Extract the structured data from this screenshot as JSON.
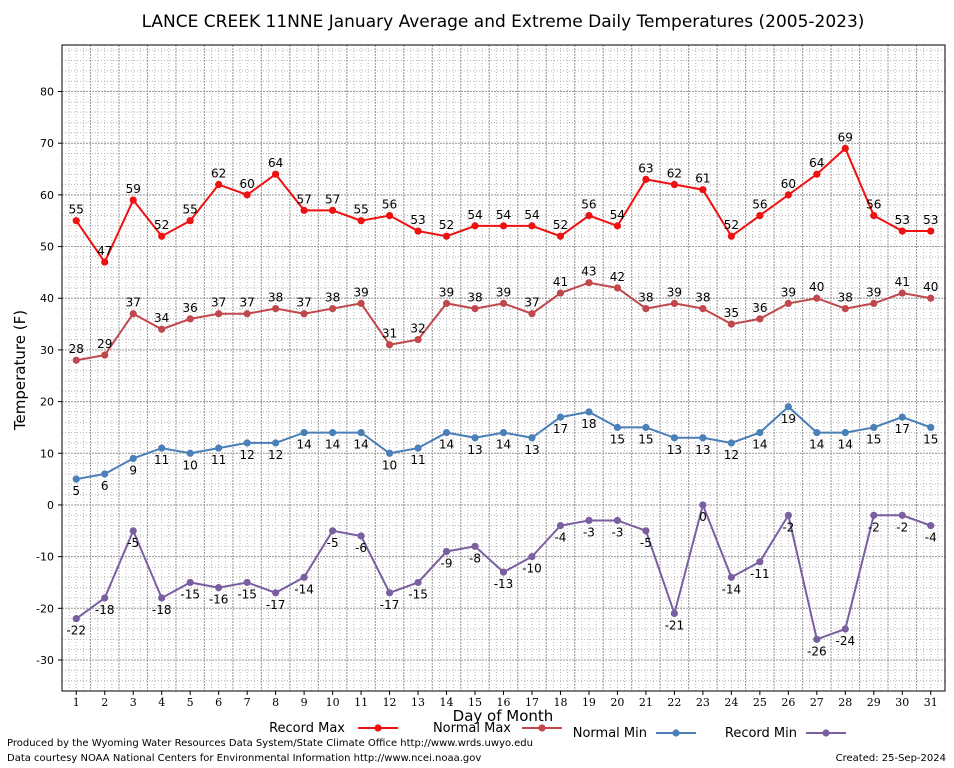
{
  "chart_data": {
    "type": "line",
    "title": "LANCE CREEK 11NNE January Average and Extreme Daily Temperatures (2005-2023)",
    "xlabel": "Day of Month",
    "ylabel": "Temperature (F)",
    "ylim": [
      -36,
      89
    ],
    "yticks": [
      -30,
      -20,
      -10,
      0,
      10,
      20,
      30,
      40,
      50,
      60,
      70,
      80
    ],
    "grid": true,
    "legend_position": "bottom",
    "x": [
      1,
      2,
      3,
      4,
      5,
      6,
      7,
      8,
      9,
      10,
      11,
      12,
      13,
      14,
      15,
      16,
      17,
      18,
      19,
      20,
      21,
      22,
      23,
      24,
      25,
      26,
      27,
      28,
      29,
      30,
      31
    ],
    "series": [
      {
        "name": "Record Max",
        "color": "#ee1111",
        "label_pos": "above",
        "values": [
          55,
          47,
          59,
          52,
          55,
          62,
          60,
          64,
          57,
          57,
          55,
          56,
          53,
          52,
          54,
          54,
          54,
          52,
          56,
          54,
          63,
          62,
          61,
          52,
          56,
          60,
          64,
          69,
          56,
          53,
          53
        ]
      },
      {
        "name": "Normal Max",
        "color": "#c0484c",
        "label_pos": "above",
        "values": [
          28,
          29,
          37,
          34,
          36,
          37,
          37,
          38,
          37,
          38,
          39,
          31,
          32,
          39,
          38,
          39,
          37,
          41,
          43,
          42,
          38,
          39,
          38,
          35,
          36,
          39,
          40,
          38,
          39,
          41,
          40
        ]
      },
      {
        "name": "Normal Min",
        "color": "#4a7fb8",
        "label_pos": "below",
        "values": [
          5,
          6,
          9,
          11,
          10,
          11,
          12,
          12,
          14,
          14,
          14,
          10,
          11,
          14,
          13,
          14,
          13,
          17,
          18,
          15,
          15,
          13,
          13,
          12,
          14,
          19,
          14,
          14,
          15,
          17,
          15
        ]
      },
      {
        "name": "Record Min",
        "color": "#7a5fa0",
        "label_pos": "below",
        "values": [
          -22,
          -18,
          -5,
          -18,
          -15,
          -16,
          -15,
          -17,
          -14,
          -5,
          -6,
          -17,
          -15,
          -9,
          -8,
          -13,
          -10,
          -4,
          -3,
          -3,
          -5,
          -21,
          0,
          -14,
          -11,
          -2,
          -26,
          -24,
          -2,
          -2,
          -4
        ]
      }
    ]
  },
  "footer": {
    "produced_by": "Produced by the Wyoming Water Resources Data System/State Climate Office http://www.wrds.uwyo.edu",
    "courtesy": "Data courtesy NOAA National Centers for Environmental Information http://www.ncei.noaa.gov",
    "created": "Created:  25-Sep-2024"
  }
}
